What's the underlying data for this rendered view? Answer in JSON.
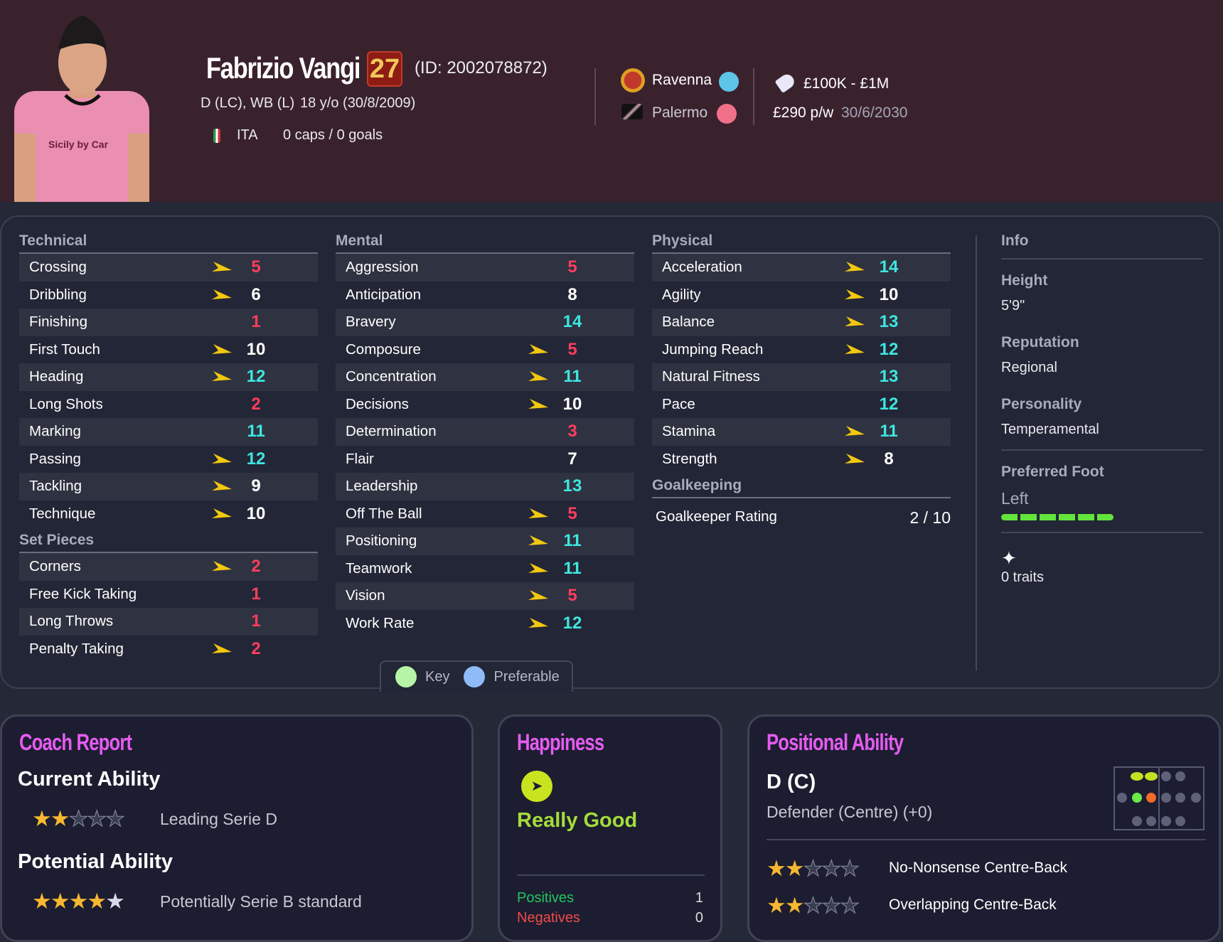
{
  "player": {
    "name": "Fabrizio Vangi",
    "current_ability_badge": "27",
    "id_text": "(ID: 2002078872)",
    "positions": "D (LC), WB (L)",
    "age": "18 y/o (30/8/2009)",
    "nationality": "ITA",
    "caps_goals": "0 caps / 0 goals",
    "flag_icon": "italy-flag-icon"
  },
  "clubs": {
    "loan_club": "Ravenna",
    "parent_club": "Palermo"
  },
  "contract": {
    "value": "£100K - £1M",
    "wage": "£290 p/w",
    "expiry": "30/6/2030"
  },
  "colors": {
    "low": "#ff3d5e",
    "mid": "#ffffff",
    "high": "#3fe6e0",
    "arrow": "#f2c80f",
    "accent_title": "#e45cf0",
    "happy": "#a5dc3a"
  },
  "technical": {
    "title": "Technical",
    "rows": [
      {
        "label": "Crossing",
        "value": 5,
        "arrow": true
      },
      {
        "label": "Dribbling",
        "value": 6,
        "arrow": true
      },
      {
        "label": "Finishing",
        "value": 1,
        "arrow": false
      },
      {
        "label": "First Touch",
        "value": 10,
        "arrow": true
      },
      {
        "label": "Heading",
        "value": 12,
        "arrow": true
      },
      {
        "label": "Long Shots",
        "value": 2,
        "arrow": false
      },
      {
        "label": "Marking",
        "value": 11,
        "arrow": false
      },
      {
        "label": "Passing",
        "value": 12,
        "arrow": true
      },
      {
        "label": "Tackling",
        "value": 9,
        "arrow": true
      },
      {
        "label": "Technique",
        "value": 10,
        "arrow": true
      }
    ]
  },
  "set_pieces": {
    "title": "Set Pieces",
    "rows": [
      {
        "label": "Corners",
        "value": 2,
        "arrow": true
      },
      {
        "label": "Free Kick Taking",
        "value": 1,
        "arrow": false
      },
      {
        "label": "Long Throws",
        "value": 1,
        "arrow": false
      },
      {
        "label": "Penalty Taking",
        "value": 2,
        "arrow": true
      }
    ]
  },
  "mental": {
    "title": "Mental",
    "rows": [
      {
        "label": "Aggression",
        "value": 5,
        "arrow": false
      },
      {
        "label": "Anticipation",
        "value": 8,
        "arrow": false
      },
      {
        "label": "Bravery",
        "value": 14,
        "arrow": false
      },
      {
        "label": "Composure",
        "value": 5,
        "arrow": true
      },
      {
        "label": "Concentration",
        "value": 11,
        "arrow": true
      },
      {
        "label": "Decisions",
        "value": 10,
        "arrow": true
      },
      {
        "label": "Determination",
        "value": 3,
        "arrow": false
      },
      {
        "label": "Flair",
        "value": 7,
        "arrow": false
      },
      {
        "label": "Leadership",
        "value": 13,
        "arrow": false
      },
      {
        "label": "Off The Ball",
        "value": 5,
        "arrow": true
      },
      {
        "label": "Positioning",
        "value": 11,
        "arrow": true
      },
      {
        "label": "Teamwork",
        "value": 11,
        "arrow": true
      },
      {
        "label": "Vision",
        "value": 5,
        "arrow": true
      },
      {
        "label": "Work Rate",
        "value": 12,
        "arrow": true
      }
    ]
  },
  "physical": {
    "title": "Physical",
    "rows": [
      {
        "label": "Acceleration",
        "value": 14,
        "arrow": true
      },
      {
        "label": "Agility",
        "value": 10,
        "arrow": true
      },
      {
        "label": "Balance",
        "value": 13,
        "arrow": true
      },
      {
        "label": "Jumping Reach",
        "value": 12,
        "arrow": true
      },
      {
        "label": "Natural Fitness",
        "value": 13,
        "arrow": false
      },
      {
        "label": "Pace",
        "value": 12,
        "arrow": false
      },
      {
        "label": "Stamina",
        "value": 11,
        "arrow": true
      },
      {
        "label": "Strength",
        "value": 8,
        "arrow": true
      }
    ]
  },
  "goalkeeping": {
    "title": "Goalkeeping",
    "rating_label": "Goalkeeper Rating",
    "rating_value": "2 / 10"
  },
  "legend": {
    "key": "Key",
    "preferable": "Preferable"
  },
  "info": {
    "title": "Info",
    "height_label": "Height",
    "height": "5'9\"",
    "reputation_label": "Reputation",
    "reputation": "Regional",
    "personality_label": "Personality",
    "personality": "Temperamental",
    "foot_label": "Preferred Foot",
    "foot": "Left",
    "foot_strength": 6,
    "foot_strength_max": 6,
    "traits": "0 traits"
  },
  "coach_report": {
    "title": "Coach Report",
    "current_label": "Current Ability",
    "current_stars": 2,
    "current_desc": "Leading Serie D",
    "potential_label": "Potential Ability",
    "potential_stars": 4,
    "potential_max_stars": 5,
    "potential_desc": "Potentially Serie B standard"
  },
  "happiness": {
    "title": "Happiness",
    "status": "Really Good",
    "positives_label": "Positives",
    "positives": "1",
    "negatives_label": "Negatives",
    "negatives": "0"
  },
  "positional": {
    "title": "Positional Ability",
    "position": "D (C)",
    "position_full": "Defender (Centre) (+0)",
    "roles": [
      {
        "name": "No-Nonsense Centre-Back",
        "stars": 2
      },
      {
        "name": "Overlapping Centre-Back",
        "stars": 2
      }
    ]
  }
}
